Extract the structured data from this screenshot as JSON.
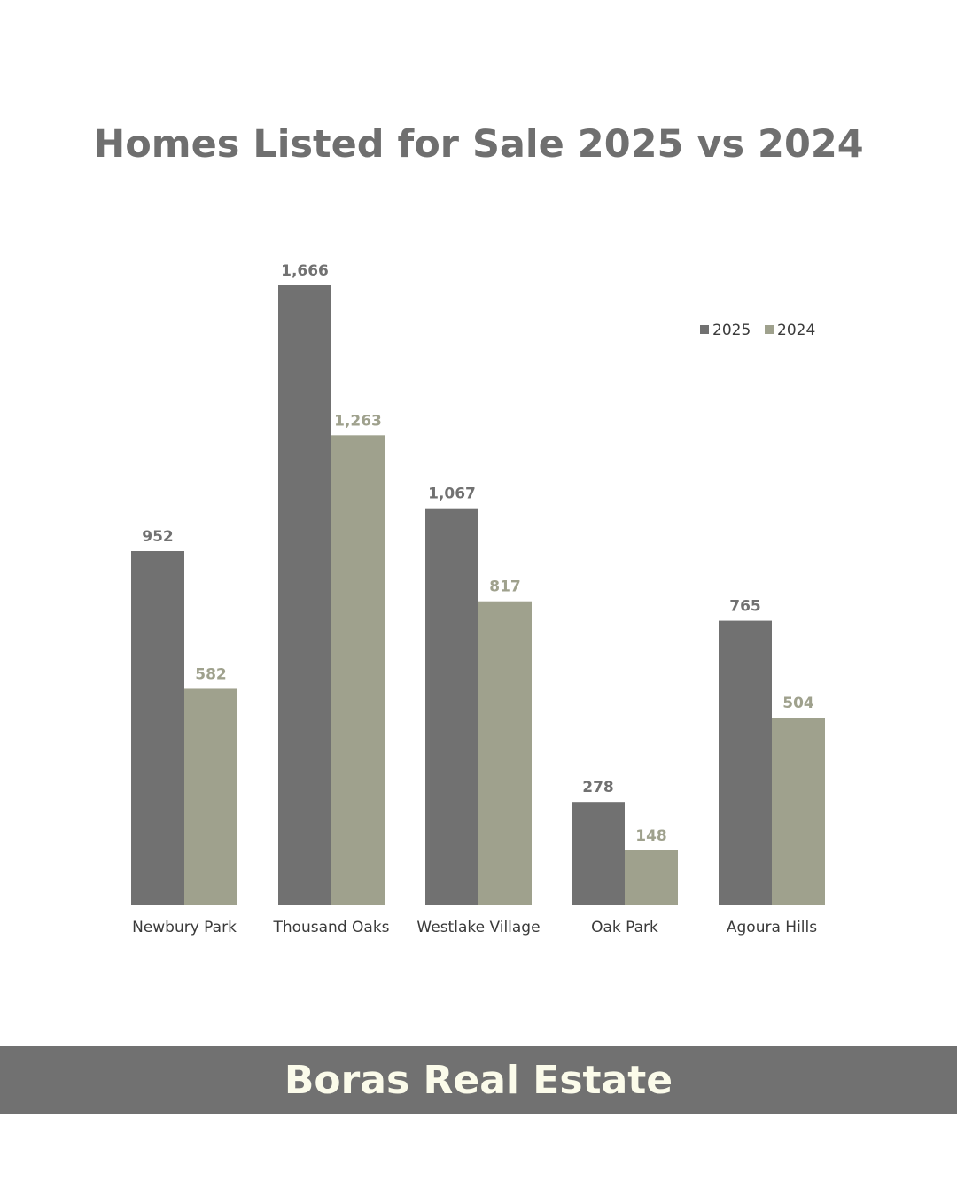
{
  "chart_data": {
    "type": "bar",
    "title": "Homes Listed for Sale 2025 vs 2024",
    "categories": [
      "Newbury Park",
      "Thousand Oaks",
      "Westlake Village",
      "Oak Park",
      "Agoura Hills"
    ],
    "series": [
      {
        "name": "2025",
        "values": [
          952,
          1666,
          1067,
          278,
          765
        ],
        "labels": [
          "952",
          "1,666",
          "1,067",
          "278",
          "765"
        ],
        "color": "#717171"
      },
      {
        "name": "2024",
        "values": [
          582,
          1263,
          817,
          148,
          504
        ],
        "labels": [
          "582",
          "1,263",
          "817",
          "148",
          "504"
        ],
        "color": "#9fa18d"
      }
    ],
    "ylim": [
      0,
      1666
    ],
    "grid": false,
    "legend_position": "top-right"
  },
  "footer": {
    "brand": "Boras Real Estate"
  },
  "colors": {
    "title": "#6f6f6f",
    "footer_band": "#717171",
    "footer_text": "#fbfbea",
    "axis_label": "#3a3a3a"
  }
}
